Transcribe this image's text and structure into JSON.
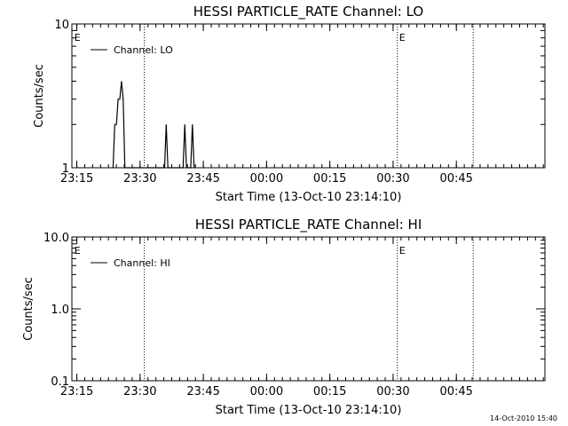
{
  "chart_data": [
    {
      "type": "line",
      "title": "HESSI PARTICLE_RATE Channel: LO",
      "xlabel": "Start Time (13-Oct-10 23:14:10)",
      "ylabel": "Counts/sec",
      "y_scale": "log",
      "ylim": [
        1,
        10
      ],
      "y_ticks": [
        {
          "value": 1,
          "label": "1"
        },
        {
          "value": 10,
          "label": "10"
        }
      ],
      "x_range_minutes": [
        -0.17,
        112
      ],
      "x_ticks": [
        {
          "value": 1,
          "label": "23:15"
        },
        {
          "value": 16,
          "label": "23:30"
        },
        {
          "value": 31,
          "label": "23:45"
        },
        {
          "value": 46,
          "label": "00:00"
        },
        {
          "value": 61,
          "label": "00:15"
        },
        {
          "value": 76,
          "label": "00:30"
        },
        {
          "value": 91,
          "label": "00:45"
        }
      ],
      "legend": {
        "label": "Channel: LO",
        "position": "top-left"
      },
      "vlines": [
        17,
        77,
        95
      ],
      "event_markers": [
        {
          "label": "E",
          "x": 0
        },
        {
          "label": "E",
          "x": 77
        }
      ],
      "series": [
        {
          "name": "Channel: LO",
          "x": [
            9.6,
            10.0,
            10.4,
            10.8,
            11.2,
            11.6,
            12.0,
            12.4,
            21.8,
            22.2,
            22.6,
            26.2,
            26.6,
            27.0,
            28.0,
            28.4,
            28.8
          ],
          "y": [
            1,
            2,
            2,
            3,
            3,
            4,
            3,
            1,
            1,
            2,
            1,
            1,
            2,
            1,
            1,
            2,
            1
          ]
        }
      ]
    },
    {
      "type": "line",
      "title": "HESSI PARTICLE_RATE Channel: HI",
      "xlabel": "Start Time (13-Oct-10 23:14:10)",
      "ylabel": "Counts/sec",
      "y_scale": "log",
      "ylim": [
        0.1,
        10
      ],
      "y_ticks": [
        {
          "value": 0.1,
          "label": "0.1"
        },
        {
          "value": 1,
          "label": "1.0"
        },
        {
          "value": 10,
          "label": "10.0"
        }
      ],
      "x_range_minutes": [
        -0.17,
        112
      ],
      "x_ticks": [
        {
          "value": 1,
          "label": "23:15"
        },
        {
          "value": 16,
          "label": "23:30"
        },
        {
          "value": 31,
          "label": "23:45"
        },
        {
          "value": 46,
          "label": "00:00"
        },
        {
          "value": 61,
          "label": "00:15"
        },
        {
          "value": 76,
          "label": "00:30"
        },
        {
          "value": 91,
          "label": "00:45"
        }
      ],
      "legend": {
        "label": "Channel: HI",
        "position": "top-left"
      },
      "vlines": [
        17,
        77,
        95
      ],
      "event_markers": [
        {
          "label": "E",
          "x": 0
        },
        {
          "label": "E",
          "x": 77
        }
      ],
      "series": [
        {
          "name": "Channel: HI",
          "x": [],
          "y": []
        }
      ]
    }
  ],
  "footer": {
    "timestamp": "14-Oct-2010 15:40"
  }
}
